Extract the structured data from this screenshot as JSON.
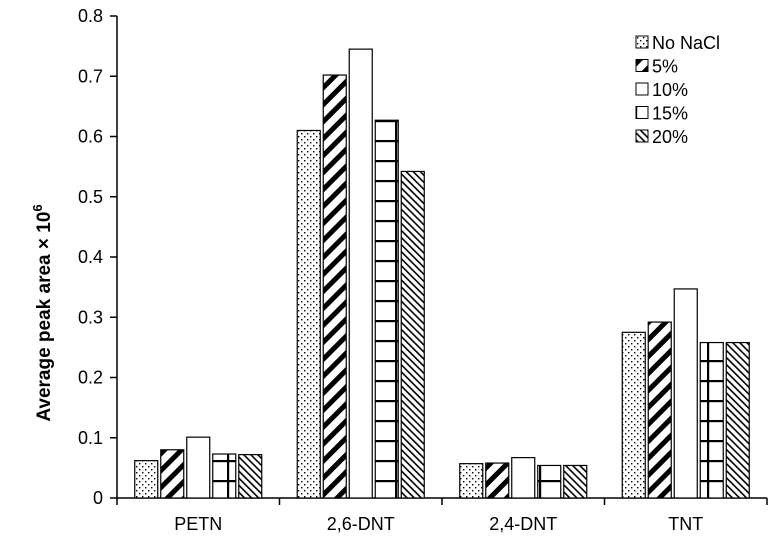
{
  "chart_data": {
    "type": "bar",
    "categories": [
      "PETN",
      "2,6-DNT",
      "2,4-DNT",
      "TNT"
    ],
    "series": [
      {
        "name": "No NaCl",
        "pattern": "dots",
        "values": [
          0.062,
          0.61,
          0.057,
          0.275
        ]
      },
      {
        "name": "5%",
        "pattern": "wide-diagonal",
        "values": [
          0.08,
          0.702,
          0.058,
          0.292
        ]
      },
      {
        "name": "10%",
        "pattern": "empty",
        "values": [
          0.101,
          0.745,
          0.067,
          0.347
        ]
      },
      {
        "name": "15%",
        "pattern": "grid",
        "values": [
          0.073,
          0.627,
          0.054,
          0.258
        ]
      },
      {
        "name": "20%",
        "pattern": "narrow-diagonal",
        "values": [
          0.072,
          0.542,
          0.054,
          0.258
        ]
      }
    ],
    "title": "",
    "xlabel": "",
    "ylabel": "Average peak area × 10",
    "ylabel_exponent": "6",
    "ylim": [
      0,
      0.8
    ],
    "yticks": [
      "0",
      "0.1",
      "0.2",
      "0.3",
      "0.4",
      "0.5",
      "0.6",
      "0.7",
      "0.8"
    ],
    "grid": false,
    "legend_position": "top-right",
    "colors": {
      "bar_fill": "#ffffff",
      "bar_stroke": "#000000",
      "pattern": "#000000"
    }
  }
}
